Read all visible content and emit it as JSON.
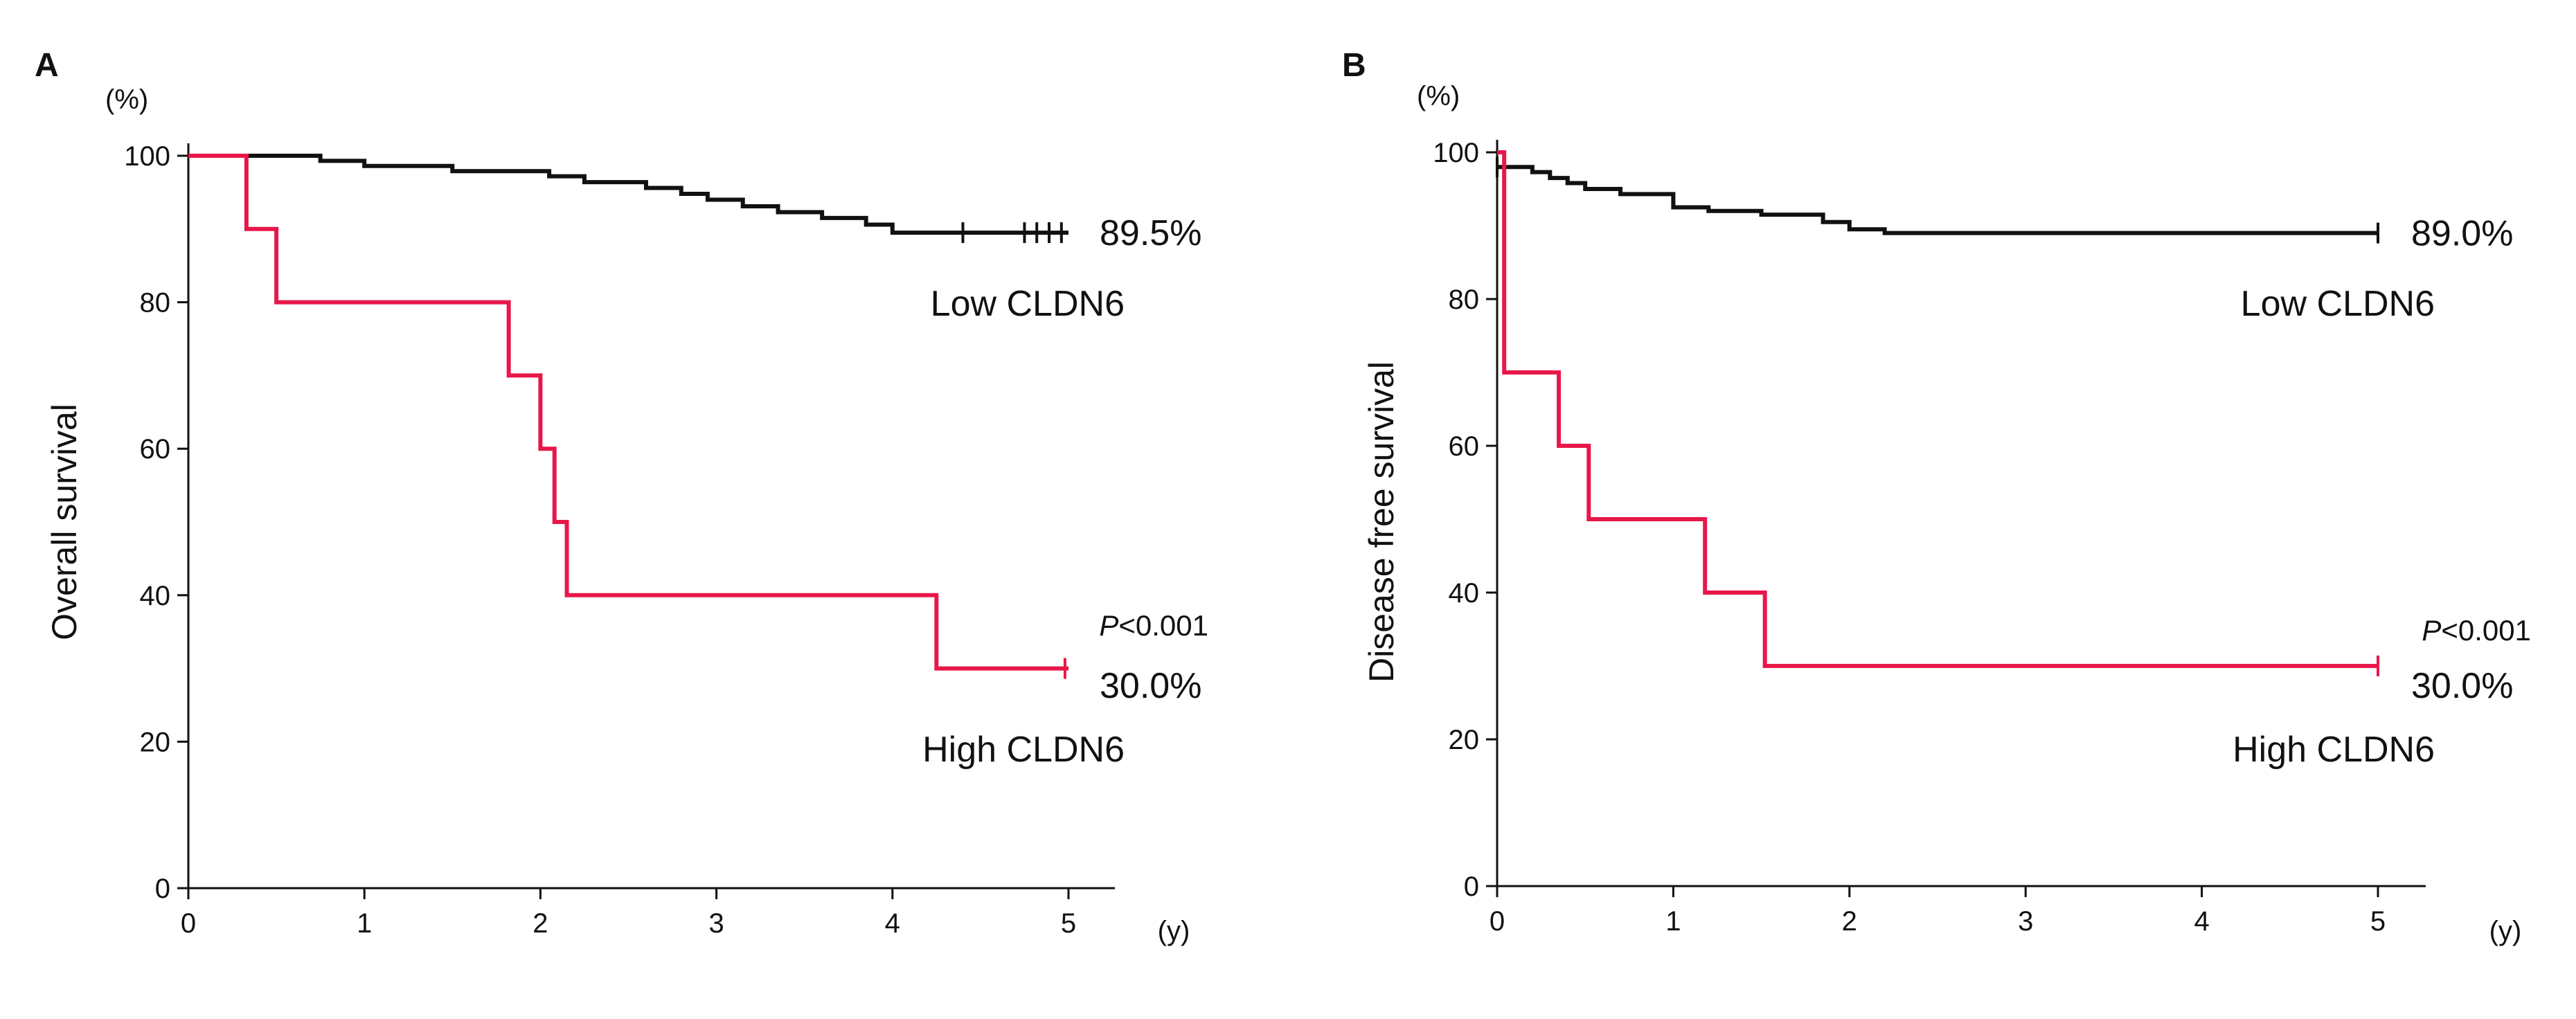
{
  "chart_data": [
    {
      "panel": "A",
      "type": "line",
      "title": "",
      "ylabel": "Overall survival",
      "yunit": "(%)",
      "xunit": "(y)",
      "xlim": [
        0,
        5
      ],
      "ylim": [
        0,
        100
      ],
      "xticks": [
        0,
        1,
        2,
        3,
        4,
        5
      ],
      "yticks": [
        0,
        20,
        40,
        60,
        80,
        100
      ],
      "p_value": {
        "italic": "P",
        "rest": "<0.001"
      },
      "series": [
        {
          "name": "Low CLDN6",
          "label": "Low CLDN6",
          "end_value": "89.5%",
          "color": "#111111",
          "steps": [
            [
              0,
              100
            ],
            [
              0.5,
              100
            ],
            [
              0.75,
              99.3
            ],
            [
              1.0,
              98.6
            ],
            [
              1.5,
              97.9
            ],
            [
              2.05,
              97.2
            ],
            [
              2.25,
              96.4
            ],
            [
              2.6,
              95.6
            ],
            [
              2.8,
              94.8
            ],
            [
              2.95,
              94.0
            ],
            [
              3.15,
              93.1
            ],
            [
              3.35,
              92.3
            ],
            [
              3.6,
              91.5
            ],
            [
              3.85,
              90.6
            ],
            [
              4.0,
              89.5
            ],
            [
              5.0,
              89.5
            ]
          ],
          "censors": [
            4.4,
            4.75,
            4.82,
            4.89,
            4.96
          ]
        },
        {
          "name": "High CLDN6",
          "label": "High CLDN6",
          "end_value": "30.0%",
          "color": "#e8174a",
          "steps": [
            [
              0,
              100
            ],
            [
              0.33,
              90
            ],
            [
              0.5,
              80
            ],
            [
              1.82,
              70
            ],
            [
              2.0,
              60
            ],
            [
              2.08,
              50
            ],
            [
              2.15,
              40
            ],
            [
              4.25,
              30
            ],
            [
              5.0,
              30
            ]
          ],
          "censors": [
            4.98
          ]
        }
      ]
    },
    {
      "panel": "B",
      "type": "line",
      "title": "",
      "ylabel": "Disease free survival",
      "yunit": "(%)",
      "xunit": "(y)",
      "xlim": [
        0,
        5
      ],
      "ylim": [
        0,
        100
      ],
      "xticks": [
        0,
        1,
        2,
        3,
        4,
        5
      ],
      "yticks": [
        0,
        20,
        40,
        60,
        80,
        100
      ],
      "p_value": {
        "italic": "P",
        "rest": "<0.001"
      },
      "series": [
        {
          "name": "Low CLDN6",
          "label": "Low CLDN6",
          "end_value": "89.0%",
          "color": "#111111",
          "steps": [
            [
              0,
              98
            ],
            [
              0.2,
              97.3
            ],
            [
              0.3,
              96.5
            ],
            [
              0.4,
              95.8
            ],
            [
              0.5,
              95
            ],
            [
              0.7,
              94.3
            ],
            [
              1.0,
              92.5
            ],
            [
              1.2,
              92
            ],
            [
              1.5,
              91.5
            ],
            [
              1.85,
              90.5
            ],
            [
              2.0,
              89.5
            ],
            [
              2.2,
              89
            ],
            [
              5.0,
              89
            ]
          ],
          "censors": [
            0,
            5.0
          ]
        },
        {
          "name": "High CLDN6",
          "label": "High CLDN6",
          "end_value": "30.0%",
          "color": "#e8174a",
          "steps": [
            [
              0,
              100
            ],
            [
              0.04,
              70
            ],
            [
              0.35,
              60
            ],
            [
              0.52,
              50
            ],
            [
              1.18,
              40
            ],
            [
              1.52,
              30
            ],
            [
              5.0,
              30
            ]
          ],
          "censors": [
            5.0
          ]
        }
      ]
    }
  ]
}
